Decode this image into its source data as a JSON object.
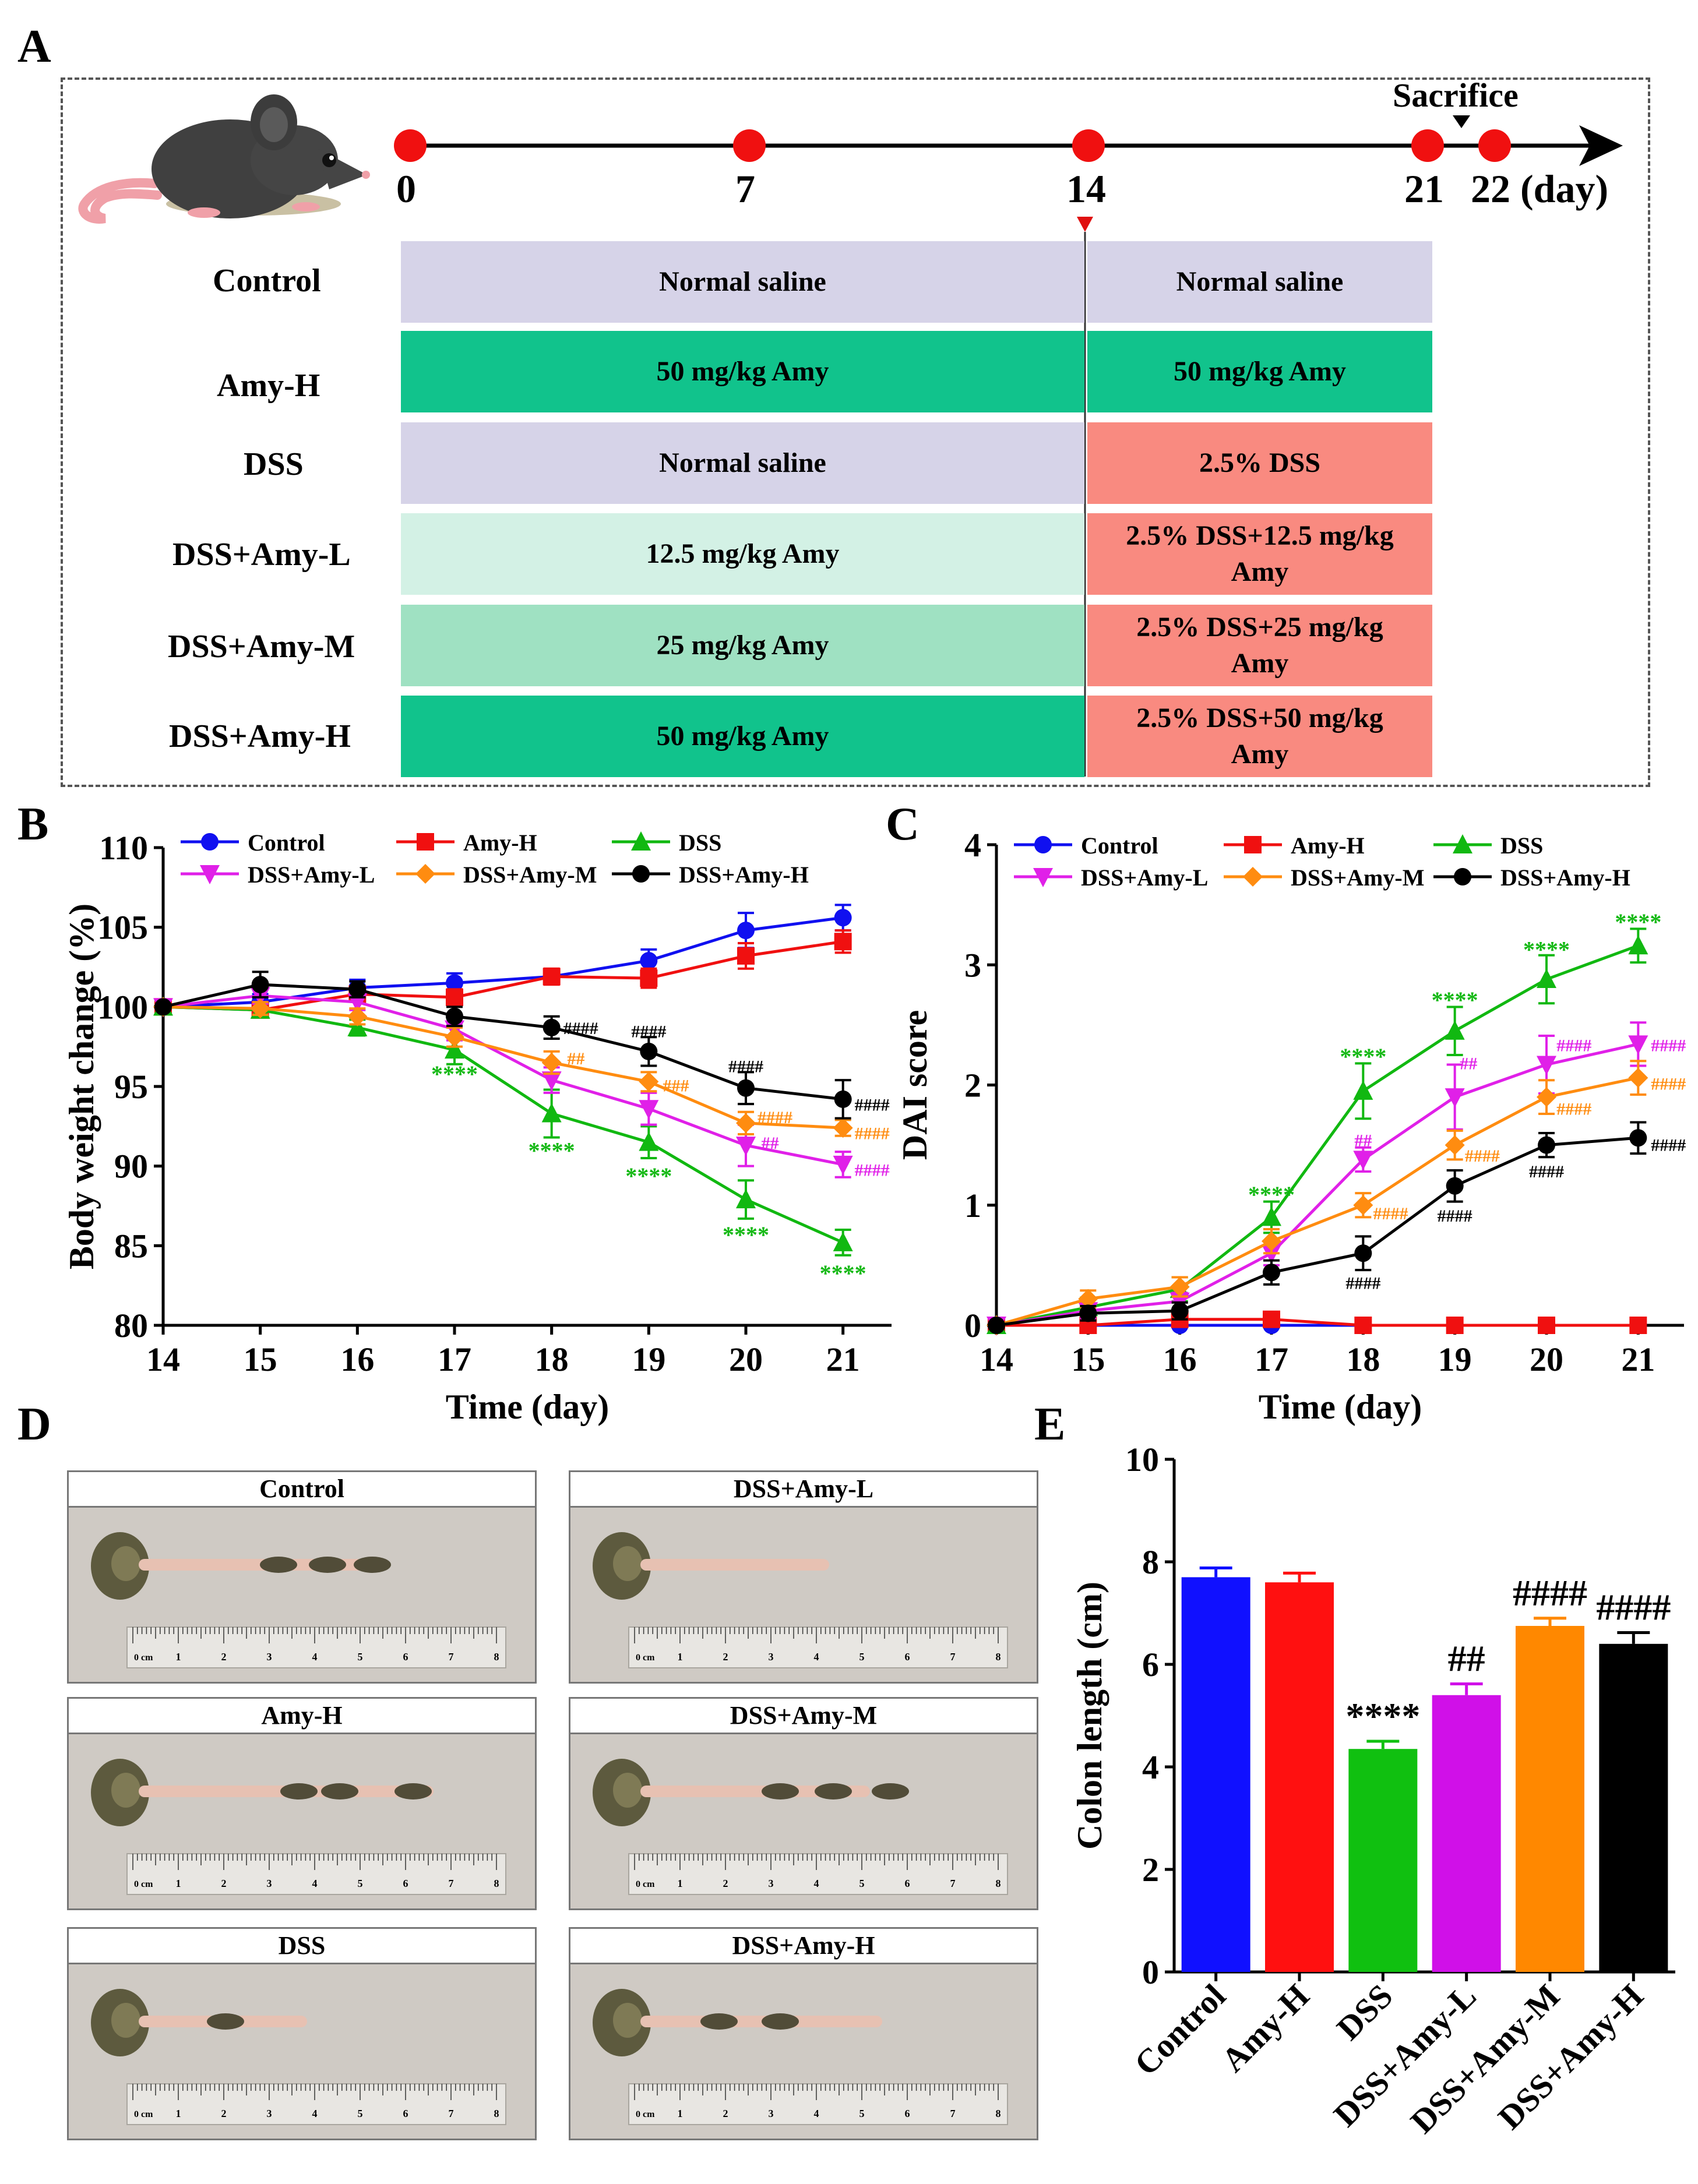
{
  "panels": {
    "a": "A",
    "b": "B",
    "c": "C",
    "d": "D",
    "e": "E"
  },
  "timeline": {
    "sacrifice_label": "Sacrifice",
    "day_labels": [
      "0",
      "7",
      "14",
      "21",
      "22 (day)"
    ],
    "groups": [
      {
        "name": "Control",
        "phase1": "Normal saline",
        "phase2": "Normal saline"
      },
      {
        "name": "Amy-H",
        "phase1": "50 mg/kg Amy",
        "phase2": "50 mg/kg Amy"
      },
      {
        "name": "DSS",
        "phase1": "Normal saline",
        "phase2": "2.5% DSS"
      },
      {
        "name": "DSS+Amy-L",
        "phase1": "12.5 mg/kg Amy",
        "phase2": "2.5% DSS+12.5 mg/kg Amy"
      },
      {
        "name": "DSS+Amy-M",
        "phase1": "25 mg/kg Amy",
        "phase2": "2.5% DSS+25 mg/kg Amy"
      },
      {
        "name": "DSS+Amy-H",
        "phase1": "50 mg/kg Amy",
        "phase2": "2.5% DSS+50 mg/kg Amy"
      }
    ],
    "colors": {
      "saline": "#d6d3e8",
      "amy_high": "#11c38c",
      "amy_low": "#d3f1e5",
      "amy_mid": "#9fe1c2",
      "dss": "#f98a80"
    }
  },
  "photos": {
    "titles": [
      "Control",
      "DSS+Amy-L",
      "Amy-H",
      "DSS+Amy-M",
      "DSS",
      "DSS+Amy-H"
    ],
    "ruler_unit": "0 cm",
    "ruler_numbers": [
      "1",
      "2",
      "3",
      "4",
      "5",
      "6",
      "7",
      "8"
    ]
  },
  "chart_data": [
    {
      "id": "B",
      "type": "line",
      "xlabel": "Time (day)",
      "ylabel": "Body weight change (%)",
      "x": [
        14,
        15,
        16,
        17,
        18,
        19,
        20,
        21
      ],
      "xlim": [
        14,
        21.5
      ],
      "ylim": [
        80,
        110
      ],
      "yticks": [
        80,
        85,
        90,
        95,
        100,
        105,
        110
      ],
      "series": [
        {
          "name": "Control",
          "color": "#1010f0",
          "marker": "circle",
          "values": [
            100,
            100.3,
            101.2,
            101.5,
            101.9,
            102.9,
            104.8,
            105.6
          ],
          "err": [
            0,
            0.5,
            0.5,
            0.6,
            0.4,
            0.7,
            1.1,
            0.8
          ]
        },
        {
          "name": "Amy-H",
          "color": "#f01010",
          "marker": "square",
          "values": [
            100,
            99.8,
            100.8,
            100.6,
            101.9,
            101.8,
            103.2,
            104.1
          ],
          "err": [
            0,
            0.4,
            0.4,
            0.5,
            0.5,
            0.6,
            0.8,
            0.7
          ]
        },
        {
          "name": "DSS",
          "color": "#11b811",
          "marker": "triangle-up",
          "values": [
            100,
            99.8,
            98.7,
            97.3,
            93.3,
            91.5,
            87.9,
            85.2
          ],
          "err": [
            0,
            0.4,
            0.5,
            0.9,
            1.5,
            1.0,
            1.2,
            0.8
          ]
        },
        {
          "name": "DSS+Amy-L",
          "color": "#e020e8",
          "marker": "triangle-down",
          "values": [
            100,
            100.7,
            100.3,
            98.6,
            95.4,
            93.6,
            91.3,
            90.1
          ],
          "err": [
            0,
            0.5,
            0.5,
            0.7,
            0.8,
            1.0,
            1.3,
            0.8
          ]
        },
        {
          "name": "DSS+Amy-M",
          "color": "#ff8c10",
          "marker": "diamond",
          "values": [
            100,
            99.9,
            99.4,
            98.1,
            96.5,
            95.3,
            92.7,
            92.4
          ],
          "err": [
            0,
            0.4,
            0.5,
            0.6,
            0.7,
            0.6,
            0.7,
            0.5
          ]
        },
        {
          "name": "DSS+Amy-H",
          "color": "#000000",
          "marker": "circle",
          "values": [
            100,
            101.4,
            101.1,
            99.4,
            98.7,
            97.2,
            94.9,
            94.2
          ],
          "err": [
            0,
            0.8,
            0.5,
            0.6,
            0.7,
            0.9,
            1.0,
            1.2
          ]
        }
      ],
      "annotations": [
        {
          "x": 17,
          "y": 95.8,
          "text": "****",
          "color": "#11b811",
          "dx": 0
        },
        {
          "x": 18,
          "y": 91.0,
          "text": "****",
          "color": "#11b811",
          "dx": 0
        },
        {
          "x": 19,
          "y": 89.4,
          "text": "****",
          "color": "#11b811",
          "dx": 0
        },
        {
          "x": 20,
          "y": 85.7,
          "text": "****",
          "color": "#11b811",
          "dx": 0
        },
        {
          "x": 21,
          "y": 83.3,
          "text": "****",
          "color": "#11b811",
          "dx": 0
        },
        {
          "x": 18,
          "y": 98.8,
          "text": "####",
          "color": "#000000",
          "dx": 0.3
        },
        {
          "x": 19,
          "y": 98.6,
          "text": "####",
          "color": "#000000",
          "dx": 0
        },
        {
          "x": 20,
          "y": 96.4,
          "text": "####",
          "color": "#000000",
          "dx": 0
        },
        {
          "x": 21,
          "y": 94.0,
          "text": "####",
          "color": "#000000",
          "dx": 0.3
        },
        {
          "x": 18,
          "y": 96.9,
          "text": "##",
          "color": "#ff8c10",
          "dx": 0.25
        },
        {
          "x": 19,
          "y": 95.2,
          "text": "###",
          "color": "#ff8c10",
          "dx": 0.28
        },
        {
          "x": 20,
          "y": 93.2,
          "text": "####",
          "color": "#ff8c10",
          "dx": 0.3
        },
        {
          "x": 21,
          "y": 92.2,
          "text": "####",
          "color": "#ff8c10",
          "dx": 0.3
        },
        {
          "x": 20,
          "y": 91.6,
          "text": "##",
          "color": "#e020e8",
          "dx": 0.25
        },
        {
          "x": 21,
          "y": 89.9,
          "text": "####",
          "color": "#e020e8",
          "dx": 0.3
        }
      ]
    },
    {
      "id": "C",
      "type": "line",
      "xlabel": "Time (day)",
      "ylabel": "DAI score",
      "x": [
        14,
        15,
        16,
        17,
        18,
        19,
        20,
        21
      ],
      "xlim": [
        14,
        21.5
      ],
      "ylim": [
        0,
        4
      ],
      "yticks": [
        0,
        1,
        2,
        3,
        4
      ],
      "series": [
        {
          "name": "Control",
          "color": "#1010f0",
          "marker": "circle",
          "values": [
            0,
            0,
            0,
            0,
            0,
            0,
            0,
            0
          ],
          "err": [
            0,
            0,
            0,
            0,
            0,
            0,
            0,
            0
          ]
        },
        {
          "name": "Amy-H",
          "color": "#f01010",
          "marker": "square",
          "values": [
            0,
            0,
            0.05,
            0.05,
            0,
            0,
            0,
            0
          ],
          "err": [
            0,
            0,
            0,
            0,
            0,
            0,
            0,
            0
          ]
        },
        {
          "name": "DSS",
          "color": "#11b811",
          "marker": "triangle-up",
          "values": [
            0,
            0.15,
            0.3,
            0.9,
            1.95,
            2.45,
            2.88,
            3.16
          ],
          "err": [
            0,
            0.08,
            0.1,
            0.13,
            0.23,
            0.2,
            0.2,
            0.14
          ]
        },
        {
          "name": "DSS+Amy-L",
          "color": "#e020e8",
          "marker": "triangle-down",
          "values": [
            0,
            0.12,
            0.2,
            0.6,
            1.38,
            1.9,
            2.17,
            2.34
          ],
          "err": [
            0,
            0.06,
            0.07,
            0.1,
            0.1,
            0.27,
            0.24,
            0.18
          ]
        },
        {
          "name": "DSS+Amy-M",
          "color": "#ff8c10",
          "marker": "diamond",
          "values": [
            0,
            0.22,
            0.32,
            0.7,
            1.0,
            1.5,
            1.9,
            2.06
          ],
          "err": [
            0,
            0.07,
            0.08,
            0.1,
            0.1,
            0.12,
            0.14,
            0.14
          ]
        },
        {
          "name": "DSS+Amy-H",
          "color": "#000000",
          "marker": "circle",
          "values": [
            0,
            0.1,
            0.12,
            0.44,
            0.6,
            1.16,
            1.5,
            1.56
          ],
          "err": [
            0,
            0.06,
            0.07,
            0.1,
            0.14,
            0.13,
            0.1,
            0.13
          ]
        }
      ],
      "annotations": [
        {
          "x": 17,
          "y": 1.09,
          "text": "****",
          "color": "#11b811",
          "dx": 0
        },
        {
          "x": 18,
          "y": 2.24,
          "text": "****",
          "color": "#11b811",
          "dx": 0
        },
        {
          "x": 19,
          "y": 2.71,
          "text": "****",
          "color": "#11b811",
          "dx": 0
        },
        {
          "x": 20,
          "y": 3.13,
          "text": "****",
          "color": "#11b811",
          "dx": 0
        },
        {
          "x": 21,
          "y": 3.36,
          "text": "****",
          "color": "#11b811",
          "dx": 0
        },
        {
          "x": 18,
          "y": 1.56,
          "text": "##",
          "color": "#e020e8",
          "dx": 0
        },
        {
          "x": 19,
          "y": 2.2,
          "text": "##",
          "color": "#e020e8",
          "dx": 0.15
        },
        {
          "x": 20,
          "y": 2.35,
          "text": "####",
          "color": "#e020e8",
          "dx": 0.3
        },
        {
          "x": 21,
          "y": 2.35,
          "text": "####",
          "color": "#e020e8",
          "dx": 0.33
        },
        {
          "x": 18,
          "y": 0.95,
          "text": "####",
          "color": "#ff8c10",
          "dx": 0.3
        },
        {
          "x": 19,
          "y": 1.43,
          "text": "####",
          "color": "#ff8c10",
          "dx": 0.3
        },
        {
          "x": 20,
          "y": 1.82,
          "text": "####",
          "color": "#ff8c10",
          "dx": 0.3
        },
        {
          "x": 21,
          "y": 2.03,
          "text": "####",
          "color": "#ff8c10",
          "dx": 0.33
        },
        {
          "x": 18,
          "y": 0.37,
          "text": "####",
          "color": "#000000",
          "dx": 0
        },
        {
          "x": 19,
          "y": 0.93,
          "text": "####",
          "color": "#000000",
          "dx": 0
        },
        {
          "x": 20,
          "y": 1.3,
          "text": "####",
          "color": "#000000",
          "dx": 0
        },
        {
          "x": 21,
          "y": 1.52,
          "text": "####",
          "color": "#000000",
          "dx": 0.33
        }
      ]
    },
    {
      "id": "E",
      "type": "bar",
      "ylabel": "Colon length (cm)",
      "categories": [
        "Control",
        "Amy-H",
        "DSS",
        "DSS+Amy-L",
        "DSS+Amy-M",
        "DSS+Amy-H"
      ],
      "values": [
        7.7,
        7.6,
        4.35,
        5.4,
        6.75,
        6.4
      ],
      "err": [
        0.18,
        0.18,
        0.15,
        0.22,
        0.15,
        0.22
      ],
      "colors": [
        "#1010ff",
        "#ff1010",
        "#10c010",
        "#d010e8",
        "#ff8800",
        "#000000"
      ],
      "labels": [
        "",
        "",
        "****",
        "##",
        "####",
        "####"
      ],
      "ylim": [
        0,
        10
      ],
      "yticks": [
        0,
        2,
        4,
        6,
        8,
        10
      ]
    }
  ]
}
